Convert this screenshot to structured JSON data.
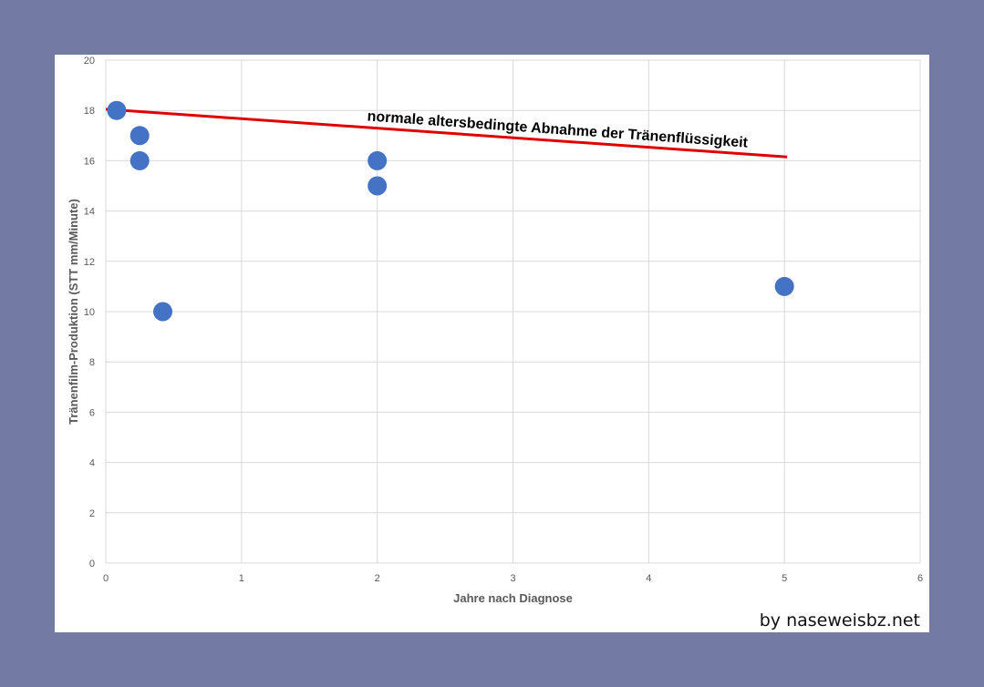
{
  "chart_data": {
    "type": "scatter",
    "xlabel": "Jahre nach Diagnose",
    "ylabel": "Tränenfilm-Produktion (STT mm/Minute)",
    "xlim": [
      0,
      6
    ],
    "ylim": [
      0,
      20
    ],
    "xticks": [
      0,
      1,
      2,
      3,
      4,
      5,
      6
    ],
    "yticks": [
      0,
      2,
      4,
      6,
      8,
      10,
      12,
      14,
      16,
      18,
      20
    ],
    "grid": true,
    "series": [
      {
        "color": "#4472c4",
        "points": [
          {
            "x": 0.08,
            "y": 18
          },
          {
            "x": 0.25,
            "y": 17
          },
          {
            "x": 0.25,
            "y": 16
          },
          {
            "x": 0.42,
            "y": 10
          },
          {
            "x": 2,
            "y": 16
          },
          {
            "x": 2,
            "y": 15
          },
          {
            "x": 5,
            "y": 11
          }
        ]
      }
    ],
    "reference_line": {
      "label": "normale altersbedingte Abnahme der Tränenflüssigkeit",
      "color": "#e00000",
      "points": [
        {
          "x": 0,
          "y": 18.05
        },
        {
          "x": 5.02,
          "y": 16.15
        }
      ]
    }
  },
  "credit": "by naseweisbz.net"
}
